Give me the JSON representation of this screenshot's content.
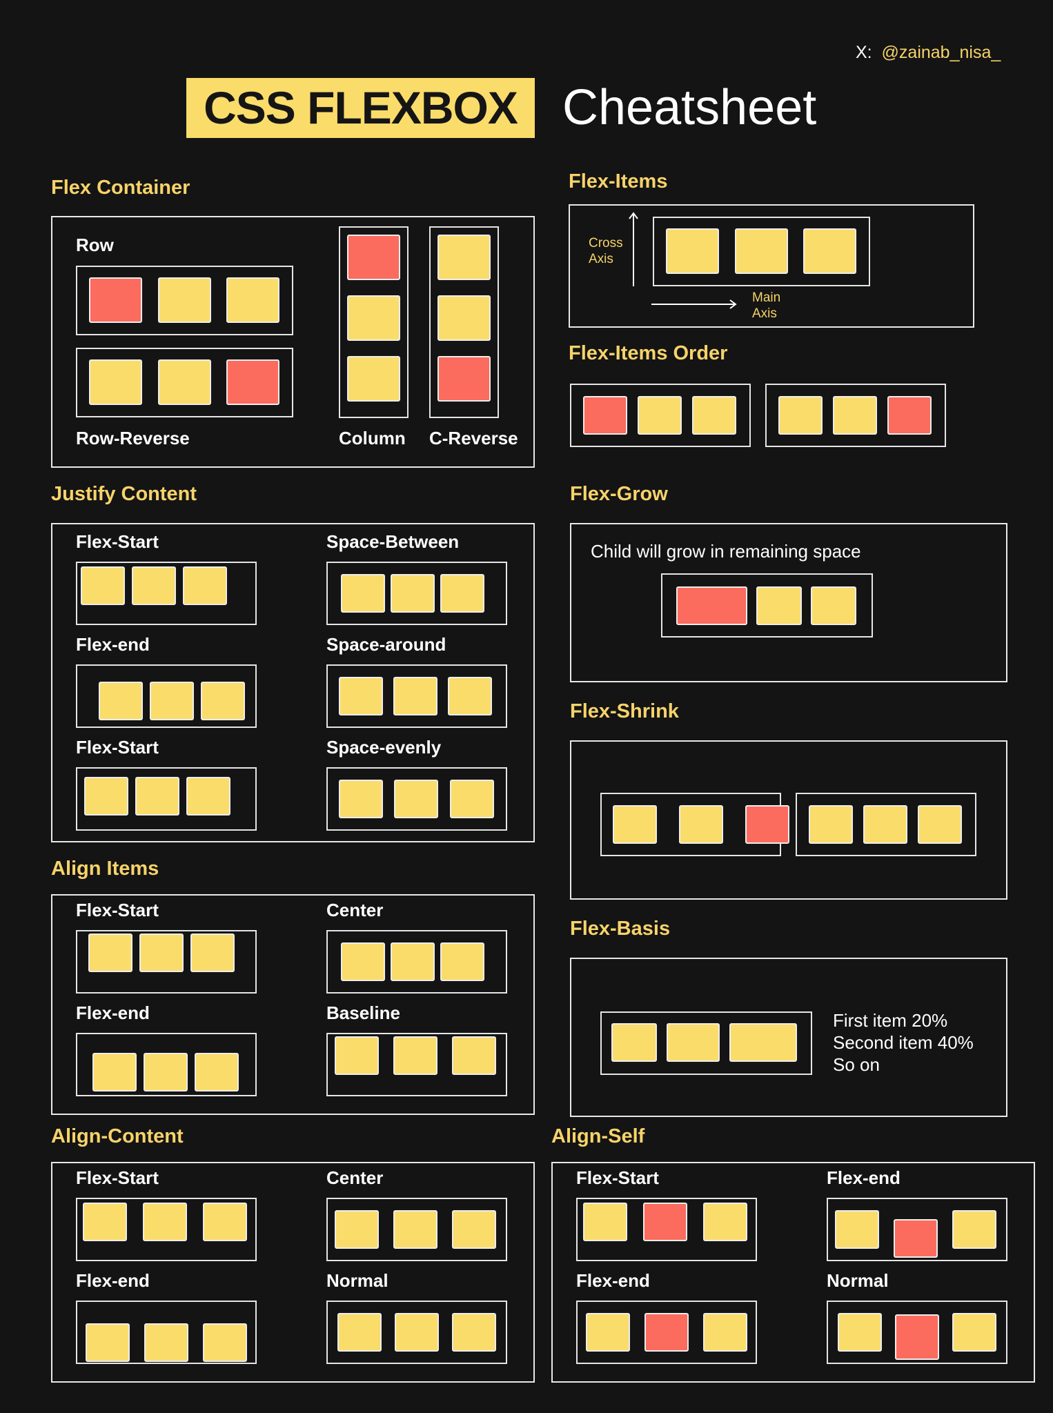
{
  "header": {
    "social_prefix": "X:",
    "handle": "@zainab_nisa_",
    "title_badge": "CSS FLEXBOX",
    "title_rest": "Cheatsheet"
  },
  "colors": {
    "background": "#141414",
    "accent": "#f7d36a",
    "item": "#fadc6a",
    "highlight": "#fb6b5e"
  },
  "flex_container": {
    "title": "Flex Container",
    "row": "Row",
    "row_reverse": "Row-Reverse",
    "column": "Column",
    "c_reverse": "C-Reverse"
  },
  "flex_items": {
    "title": "Flex-Items",
    "cross_axis": "Cross\nAxis",
    "main_axis": "Main\nAxis"
  },
  "flex_items_order": {
    "title": "Flex-Items Order"
  },
  "justify_content": {
    "title": "Justify Content",
    "labels": [
      "Flex-Start",
      "Space-Between",
      "Flex-end",
      "Space-around",
      "Flex-Start",
      "Space-evenly"
    ]
  },
  "flex_grow": {
    "title": "Flex-Grow",
    "text": "Child will grow in remaining space"
  },
  "flex_shrink": {
    "title": "Flex-Shrink"
  },
  "align_items": {
    "title": "Align Items",
    "labels": [
      "Flex-Start",
      "Center",
      "Flex-end",
      "Baseline"
    ]
  },
  "flex_basis": {
    "title": "Flex-Basis",
    "lines": [
      "First item 20%",
      "Second item 40%",
      "So on"
    ]
  },
  "align_content": {
    "title": "Align-Content",
    "labels": [
      "Flex-Start",
      "Center",
      "Flex-end",
      "Normal"
    ]
  },
  "align_self": {
    "title": "Align-Self",
    "labels": [
      "Flex-Start",
      "Flex-end",
      "Flex-end",
      "Normal"
    ]
  }
}
